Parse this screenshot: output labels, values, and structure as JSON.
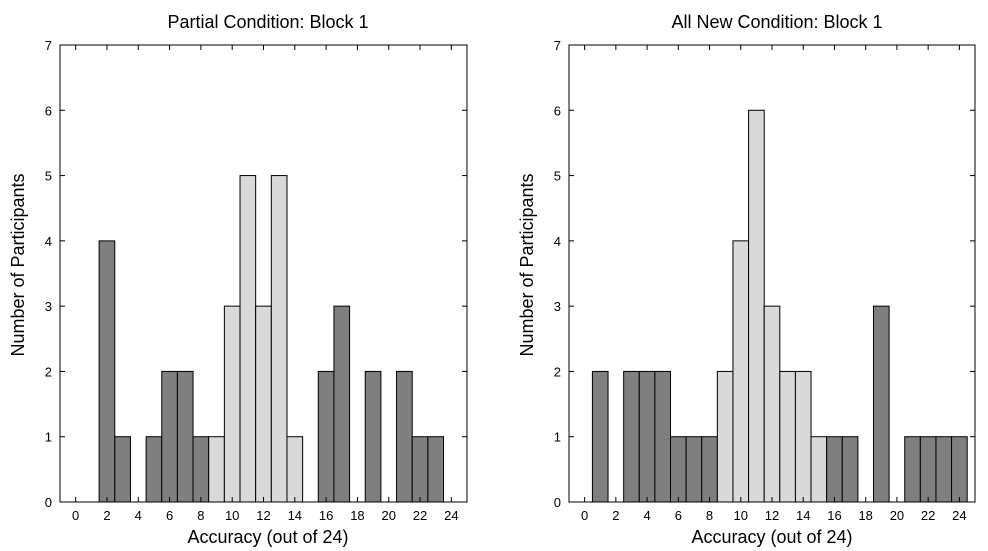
{
  "chart_data": [
    {
      "type": "bar",
      "title": "Partial Condition: Block 1",
      "xlabel": "Accuracy (out of 24)",
      "ylabel": "Number of Participants",
      "xlim": [
        -1,
        25
      ],
      "ylim": [
        0,
        7
      ],
      "xticks": [
        0,
        2,
        4,
        6,
        8,
        10,
        12,
        14,
        16,
        18,
        20,
        22,
        24
      ],
      "yticks": [
        0,
        1,
        2,
        3,
        4,
        5,
        6,
        7
      ],
      "grid": false,
      "colors": {
        "dark": "#7f7f7f",
        "light": "#d9d9d9"
      },
      "x": [
        0,
        1,
        2,
        3,
        4,
        5,
        6,
        7,
        8,
        9,
        10,
        11,
        12,
        13,
        14,
        15,
        16,
        17,
        18,
        19,
        20,
        21,
        22,
        23,
        24
      ],
      "values": [
        0,
        0,
        4,
        1,
        0,
        1,
        2,
        2,
        1,
        1,
        3,
        5,
        3,
        5,
        1,
        0,
        2,
        3,
        0,
        2,
        0,
        2,
        1,
        1,
        0
      ],
      "shade": [
        "dark",
        "dark",
        "dark",
        "dark",
        "dark",
        "dark",
        "dark",
        "dark",
        "dark",
        "light",
        "light",
        "light",
        "light",
        "light",
        "light",
        "dark",
        "dark",
        "dark",
        "dark",
        "dark",
        "dark",
        "dark",
        "dark",
        "dark",
        "dark"
      ]
    },
    {
      "type": "bar",
      "title": "All New Condition: Block 1",
      "xlabel": "Accuracy (out of 24)",
      "ylabel": "Number of Participants",
      "xlim": [
        -1,
        25
      ],
      "ylim": [
        0,
        7
      ],
      "xticks": [
        0,
        2,
        4,
        6,
        8,
        10,
        12,
        14,
        16,
        18,
        20,
        22,
        24
      ],
      "yticks": [
        0,
        1,
        2,
        3,
        4,
        5,
        6,
        7
      ],
      "grid": false,
      "colors": {
        "dark": "#7f7f7f",
        "light": "#d9d9d9"
      },
      "x": [
        0,
        1,
        2,
        3,
        4,
        5,
        6,
        7,
        8,
        9,
        10,
        11,
        12,
        13,
        14,
        15,
        16,
        17,
        18,
        19,
        20,
        21,
        22,
        23,
        24
      ],
      "values": [
        0,
        2,
        0,
        2,
        2,
        2,
        1,
        1,
        1,
        2,
        4,
        6,
        3,
        2,
        2,
        1,
        1,
        1,
        0,
        3,
        0,
        1,
        1,
        1,
        1
      ],
      "shade": [
        "dark",
        "dark",
        "dark",
        "dark",
        "dark",
        "dark",
        "dark",
        "dark",
        "dark",
        "light",
        "light",
        "light",
        "light",
        "light",
        "light",
        "light",
        "dark",
        "dark",
        "dark",
        "dark",
        "dark",
        "dark",
        "dark",
        "dark",
        "dark"
      ]
    }
  ]
}
